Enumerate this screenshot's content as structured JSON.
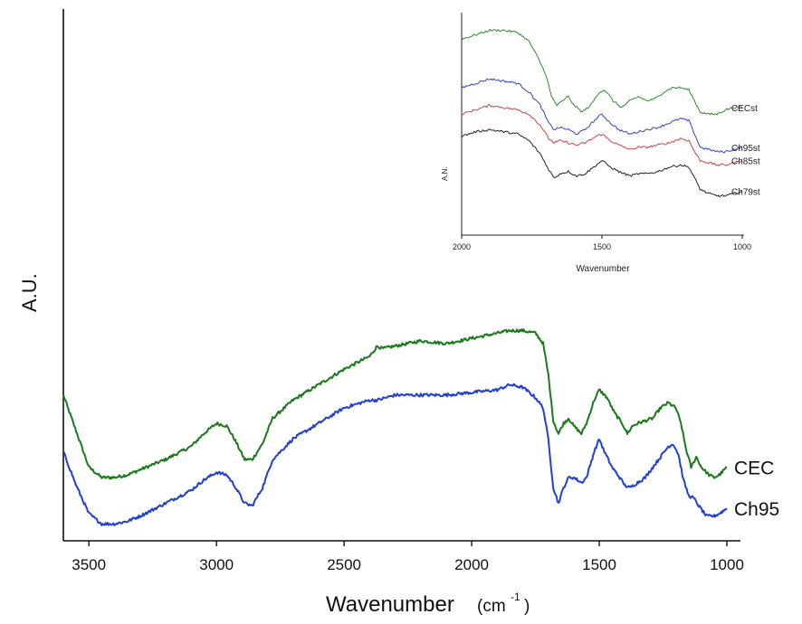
{
  "chart_data": [
    {
      "type": "line",
      "title": "",
      "xlabel": "Wavenumber",
      "xlabel_unit": "(cm",
      "xlabel_unit_exp": "-1",
      "xlabel_unit_close": ")",
      "ylabel": "A.U.",
      "xlim": [
        3600,
        1000
      ],
      "x_reversed": true,
      "y_tick_labels": false,
      "grid": false,
      "x_ticks": [
        3500,
        3000,
        2500,
        2000,
        1500,
        1000
      ],
      "x_tick_labels": [
        "3500",
        "3000",
        "2500",
        "2000",
        "1500",
        "1000"
      ],
      "series": [
        {
          "name": "CEC",
          "color": "#1a7a1a",
          "points": [
            [
              3600,
              0.52
            ],
            [
              3550,
              0.38
            ],
            [
              3500,
              0.24
            ],
            [
              3450,
              0.2
            ],
            [
              3400,
              0.2
            ],
            [
              3350,
              0.21
            ],
            [
              3300,
              0.23
            ],
            [
              3200,
              0.27
            ],
            [
              3100,
              0.32
            ],
            [
              3050,
              0.37
            ],
            [
              3000,
              0.41
            ],
            [
              2960,
              0.4
            ],
            [
              2930,
              0.35
            ],
            [
              2890,
              0.27
            ],
            [
              2860,
              0.27
            ],
            [
              2820,
              0.33
            ],
            [
              2780,
              0.43
            ],
            [
              2700,
              0.5
            ],
            [
              2600,
              0.56
            ],
            [
              2500,
              0.62
            ],
            [
              2400,
              0.67
            ],
            [
              2370,
              0.71
            ],
            [
              2350,
              0.7
            ],
            [
              2300,
              0.71
            ],
            [
              2200,
              0.73
            ],
            [
              2100,
              0.72
            ],
            [
              2000,
              0.74
            ],
            [
              1900,
              0.76
            ],
            [
              1850,
              0.77
            ],
            [
              1800,
              0.77
            ],
            [
              1750,
              0.76
            ],
            [
              1720,
              0.72
            ],
            [
              1700,
              0.6
            ],
            [
              1680,
              0.42
            ],
            [
              1660,
              0.37
            ],
            [
              1640,
              0.41
            ],
            [
              1620,
              0.43
            ],
            [
              1600,
              0.4
            ],
            [
              1570,
              0.37
            ],
            [
              1550,
              0.41
            ],
            [
              1520,
              0.5
            ],
            [
              1500,
              0.54
            ],
            [
              1470,
              0.51
            ],
            [
              1440,
              0.45
            ],
            [
              1410,
              0.41
            ],
            [
              1390,
              0.37
            ],
            [
              1370,
              0.4
            ],
            [
              1350,
              0.41
            ],
            [
              1320,
              0.42
            ],
            [
              1290,
              0.43
            ],
            [
              1260,
              0.47
            ],
            [
              1230,
              0.49
            ],
            [
              1200,
              0.47
            ],
            [
              1180,
              0.41
            ],
            [
              1160,
              0.31
            ],
            [
              1140,
              0.24
            ],
            [
              1120,
              0.28
            ],
            [
              1100,
              0.24
            ],
            [
              1070,
              0.21
            ],
            [
              1050,
              0.2
            ],
            [
              1030,
              0.21
            ],
            [
              1000,
              0.24
            ]
          ]
        },
        {
          "name": "Ch95",
          "color": "#1f3fd6",
          "points": [
            [
              3600,
              0.3
            ],
            [
              3550,
              0.17
            ],
            [
              3500,
              0.06
            ],
            [
              3450,
              0.02
            ],
            [
              3400,
              0.02
            ],
            [
              3350,
              0.03
            ],
            [
              3300,
              0.05
            ],
            [
              3200,
              0.1
            ],
            [
              3100,
              0.15
            ],
            [
              3050,
              0.19
            ],
            [
              3000,
              0.22
            ],
            [
              2960,
              0.21
            ],
            [
              2930,
              0.17
            ],
            [
              2890,
              0.1
            ],
            [
              2860,
              0.09
            ],
            [
              2820,
              0.16
            ],
            [
              2780,
              0.27
            ],
            [
              2700,
              0.35
            ],
            [
              2600,
              0.41
            ],
            [
              2500,
              0.47
            ],
            [
              2400,
              0.5
            ],
            [
              2370,
              0.5
            ],
            [
              2300,
              0.52
            ],
            [
              2200,
              0.52
            ],
            [
              2100,
              0.52
            ],
            [
              2000,
              0.53
            ],
            [
              1900,
              0.54
            ],
            [
              1850,
              0.56
            ],
            [
              1800,
              0.55
            ],
            [
              1750,
              0.51
            ],
            [
              1720,
              0.47
            ],
            [
              1700,
              0.35
            ],
            [
              1680,
              0.16
            ],
            [
              1660,
              0.1
            ],
            [
              1640,
              0.16
            ],
            [
              1620,
              0.2
            ],
            [
              1600,
              0.2
            ],
            [
              1570,
              0.18
            ],
            [
              1550,
              0.2
            ],
            [
              1520,
              0.3
            ],
            [
              1500,
              0.35
            ],
            [
              1480,
              0.3
            ],
            [
              1450,
              0.24
            ],
            [
              1420,
              0.2
            ],
            [
              1400,
              0.17
            ],
            [
              1380,
              0.16
            ],
            [
              1350,
              0.18
            ],
            [
              1320,
              0.2
            ],
            [
              1290,
              0.24
            ],
            [
              1260,
              0.28
            ],
            [
              1230,
              0.32
            ],
            [
              1210,
              0.33
            ],
            [
              1190,
              0.29
            ],
            [
              1170,
              0.19
            ],
            [
              1150,
              0.13
            ],
            [
              1130,
              0.12
            ],
            [
              1110,
              0.09
            ],
            [
              1080,
              0.05
            ],
            [
              1050,
              0.05
            ],
            [
              1030,
              0.06
            ],
            [
              1000,
              0.08
            ]
          ]
        }
      ]
    },
    {
      "type": "line",
      "title": "",
      "xlabel": "Wavenumber",
      "ylabel": "A.N.",
      "xlim": [
        2000,
        1000
      ],
      "x_reversed": true,
      "grid": false,
      "x_ticks": [
        2000,
        1500,
        1000
      ],
      "x_tick_labels": [
        "2000",
        "1500",
        "1000"
      ],
      "series": [
        {
          "name": "CECst",
          "color": "#2e8b2e",
          "points": [
            [
              2000,
              0.88
            ],
            [
              1950,
              0.9
            ],
            [
              1900,
              0.92
            ],
            [
              1850,
              0.92
            ],
            [
              1800,
              0.91
            ],
            [
              1760,
              0.87
            ],
            [
              1730,
              0.8
            ],
            [
              1700,
              0.72
            ],
            [
              1680,
              0.62
            ],
            [
              1660,
              0.58
            ],
            [
              1640,
              0.6
            ],
            [
              1620,
              0.62
            ],
            [
              1600,
              0.58
            ],
            [
              1570,
              0.55
            ],
            [
              1540,
              0.58
            ],
            [
              1510,
              0.64
            ],
            [
              1490,
              0.65
            ],
            [
              1460,
              0.6
            ],
            [
              1430,
              0.57
            ],
            [
              1400,
              0.6
            ],
            [
              1370,
              0.62
            ],
            [
              1340,
              0.6
            ],
            [
              1310,
              0.61
            ],
            [
              1280,
              0.64
            ],
            [
              1250,
              0.66
            ],
            [
              1220,
              0.66
            ],
            [
              1190,
              0.65
            ],
            [
              1170,
              0.6
            ],
            [
              1150,
              0.55
            ],
            [
              1120,
              0.54
            ],
            [
              1090,
              0.54
            ],
            [
              1060,
              0.56
            ],
            [
              1030,
              0.57
            ],
            [
              1000,
              0.57
            ]
          ]
        },
        {
          "name": "Ch95st",
          "color": "#3344cc",
          "points": [
            [
              2000,
              0.66
            ],
            [
              1950,
              0.68
            ],
            [
              1900,
              0.7
            ],
            [
              1850,
              0.69
            ],
            [
              1800,
              0.68
            ],
            [
              1760,
              0.64
            ],
            [
              1720,
              0.58
            ],
            [
              1690,
              0.5
            ],
            [
              1670,
              0.47
            ],
            [
              1650,
              0.48
            ],
            [
              1620,
              0.47
            ],
            [
              1590,
              0.45
            ],
            [
              1560,
              0.47
            ],
            [
              1520,
              0.52
            ],
            [
              1500,
              0.54
            ],
            [
              1470,
              0.5
            ],
            [
              1440,
              0.47
            ],
            [
              1400,
              0.45
            ],
            [
              1370,
              0.46
            ],
            [
              1340,
              0.47
            ],
            [
              1300,
              0.48
            ],
            [
              1260,
              0.5
            ],
            [
              1220,
              0.52
            ],
            [
              1190,
              0.51
            ],
            [
              1170,
              0.45
            ],
            [
              1150,
              0.39
            ],
            [
              1120,
              0.38
            ],
            [
              1090,
              0.37
            ],
            [
              1060,
              0.37
            ],
            [
              1030,
              0.38
            ],
            [
              1000,
              0.39
            ]
          ]
        },
        {
          "name": "Ch85st",
          "color": "#cc4444",
          "points": [
            [
              2000,
              0.54
            ],
            [
              1950,
              0.56
            ],
            [
              1900,
              0.58
            ],
            [
              1850,
              0.57
            ],
            [
              1800,
              0.56
            ],
            [
              1760,
              0.54
            ],
            [
              1720,
              0.49
            ],
            [
              1690,
              0.43
            ],
            [
              1670,
              0.41
            ],
            [
              1650,
              0.42
            ],
            [
              1620,
              0.41
            ],
            [
              1590,
              0.4
            ],
            [
              1560,
              0.41
            ],
            [
              1520,
              0.44
            ],
            [
              1500,
              0.45
            ],
            [
              1470,
              0.42
            ],
            [
              1440,
              0.4
            ],
            [
              1400,
              0.38
            ],
            [
              1370,
              0.39
            ],
            [
              1340,
              0.39
            ],
            [
              1300,
              0.4
            ],
            [
              1260,
              0.41
            ],
            [
              1220,
              0.43
            ],
            [
              1190,
              0.42
            ],
            [
              1170,
              0.37
            ],
            [
              1150,
              0.33
            ],
            [
              1120,
              0.32
            ],
            [
              1090,
              0.31
            ],
            [
              1060,
              0.31
            ],
            [
              1030,
              0.32
            ],
            [
              1000,
              0.33
            ]
          ]
        },
        {
          "name": "Ch79st",
          "color": "#222222",
          "points": [
            [
              2000,
              0.44
            ],
            [
              1950,
              0.46
            ],
            [
              1900,
              0.47
            ],
            [
              1850,
              0.46
            ],
            [
              1800,
              0.45
            ],
            [
              1760,
              0.42
            ],
            [
              1720,
              0.36
            ],
            [
              1690,
              0.29
            ],
            [
              1670,
              0.25
            ],
            [
              1650,
              0.27
            ],
            [
              1620,
              0.28
            ],
            [
              1590,
              0.26
            ],
            [
              1560,
              0.27
            ],
            [
              1530,
              0.3
            ],
            [
              1500,
              0.33
            ],
            [
              1470,
              0.3
            ],
            [
              1440,
              0.28
            ],
            [
              1400,
              0.26
            ],
            [
              1370,
              0.27
            ],
            [
              1340,
              0.27
            ],
            [
              1300,
              0.28
            ],
            [
              1260,
              0.3
            ],
            [
              1220,
              0.31
            ],
            [
              1190,
              0.3
            ],
            [
              1170,
              0.25
            ],
            [
              1150,
              0.2
            ],
            [
              1120,
              0.18
            ],
            [
              1090,
              0.17
            ],
            [
              1060,
              0.17
            ],
            [
              1030,
              0.18
            ],
            [
              1000,
              0.19
            ]
          ]
        }
      ]
    }
  ]
}
